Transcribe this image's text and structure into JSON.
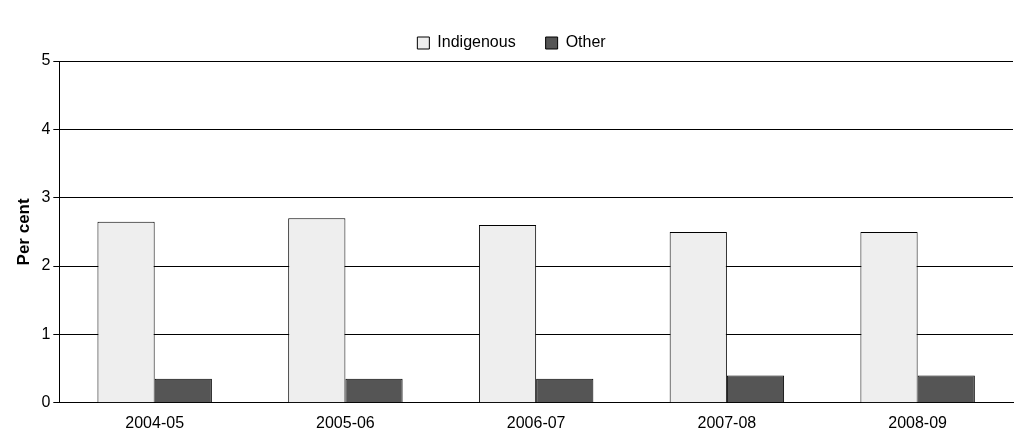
{
  "chart_data": {
    "type": "bar",
    "ylabel": "Per cent",
    "categories": [
      "2004-05",
      "2005-06",
      "2006-07",
      "2007-08",
      "2008-09"
    ],
    "series": [
      {
        "name": "Indigenous",
        "color": "#eeeeee",
        "values": [
          2.65,
          2.7,
          2.6,
          2.5,
          2.5
        ]
      },
      {
        "name": "Other",
        "color": "#555555",
        "values": [
          0.35,
          0.35,
          0.35,
          0.4,
          0.4
        ]
      }
    ],
    "ylim": [
      0,
      5
    ],
    "yticks": [
      0,
      1,
      2,
      3,
      4,
      5
    ],
    "grid": "y",
    "legend": "top"
  }
}
